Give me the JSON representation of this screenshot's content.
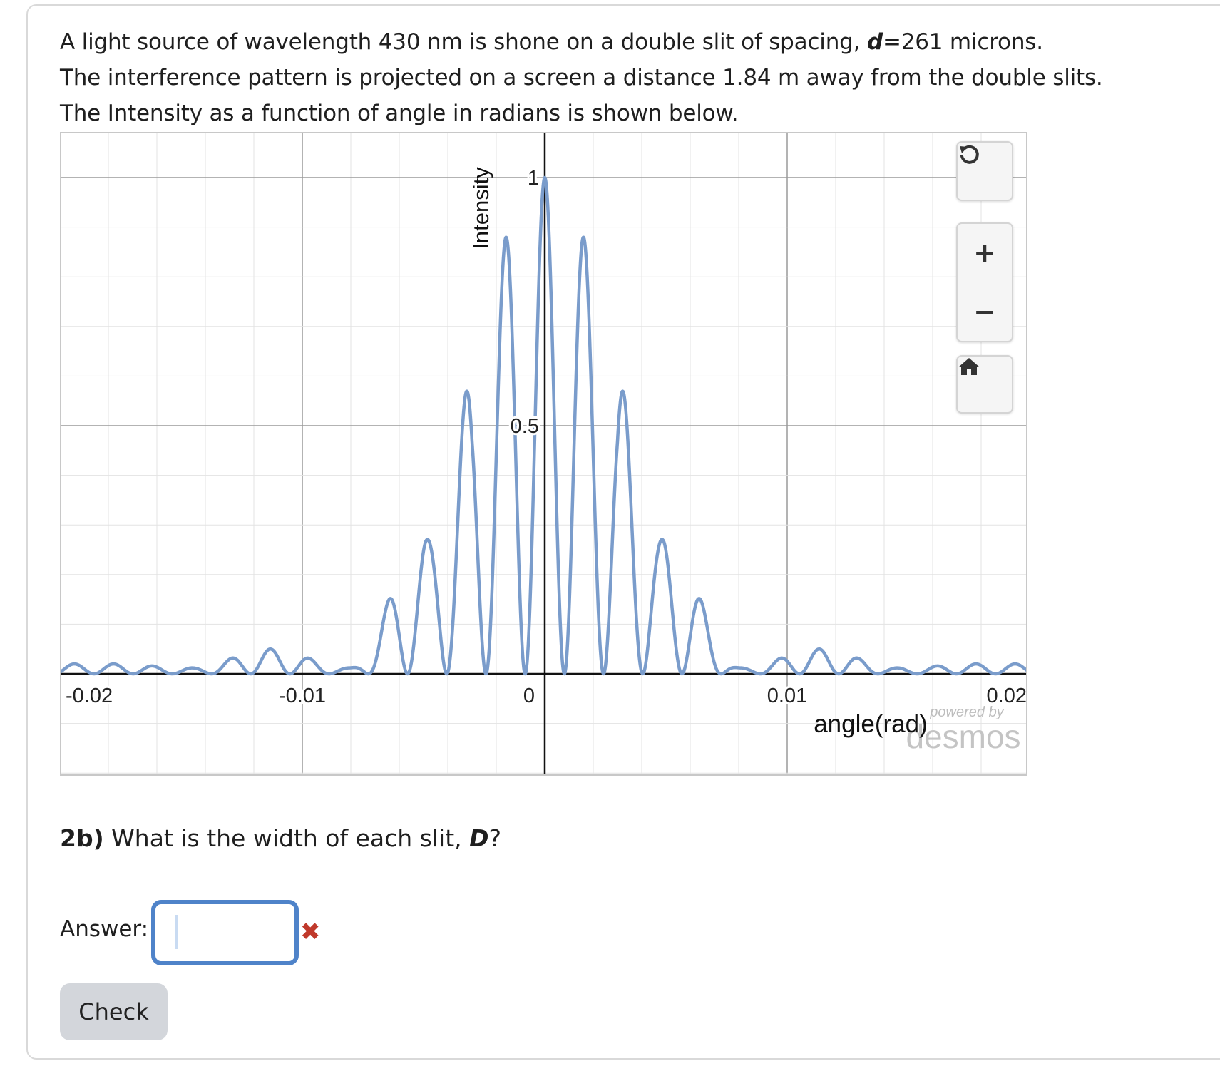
{
  "problem": {
    "line1_pre": "A light source of wavelength 430 nm is shone on a double slit of spacing, ",
    "line1_var": "d",
    "line1_post": "=261 microns.",
    "line2": "The interference pattern is projected on a screen a distance 1.84 m away from the double slits.",
    "line3": "The Intensity as a function of angle in radians is shown below."
  },
  "graph": {
    "x_tick_labels": [
      "-0.02",
      "-0.01",
      "0",
      "0.01",
      "0.02"
    ],
    "y_tick_labels": [
      "0.5",
      "1"
    ],
    "xlabel": "angle(rad)",
    "ylabel": "Intensity",
    "watermark_top": "powered by",
    "watermark_brand": "desmos",
    "curve_color": "#7a9ccb",
    "controls": {
      "reset_icon": "reset-icon",
      "zoom_in_label": "+",
      "zoom_out_label": "−",
      "home_icon": "home-icon"
    }
  },
  "chart_data": {
    "type": "line",
    "xlabel": "angle(rad)",
    "ylabel": "Intensity",
    "xlim": [
      -0.02,
      0.02
    ],
    "ylim": [
      -0.2,
      1.2
    ],
    "grid": true,
    "x": [
      -0.0032,
      -0.0016,
      0,
      0.0016,
      0.0032,
      0.0049,
      0.0065,
      0.0081,
      0.0097,
      0.0113,
      0.0129,
      0.0146,
      0.0162,
      0.0178,
      0.0194
    ],
    "series": [
      {
        "peak_intensity": [
          0.58,
          0.86,
          1.0,
          0.86,
          0.58,
          0.26,
          0.06,
          0.01,
          0.04,
          0.05,
          0.03,
          0.01,
          0.0,
          0.01,
          0.02
        ]
      }
    ]
  },
  "question": {
    "number": "2b)",
    "text_pre": " What is the width of each slit, ",
    "var": "D",
    "text_post": "?"
  },
  "answer": {
    "label": "Answer:",
    "value": "",
    "status_icon": "incorrect-x-icon",
    "status_glyph": "✖"
  },
  "check_button": {
    "label": "Check"
  }
}
